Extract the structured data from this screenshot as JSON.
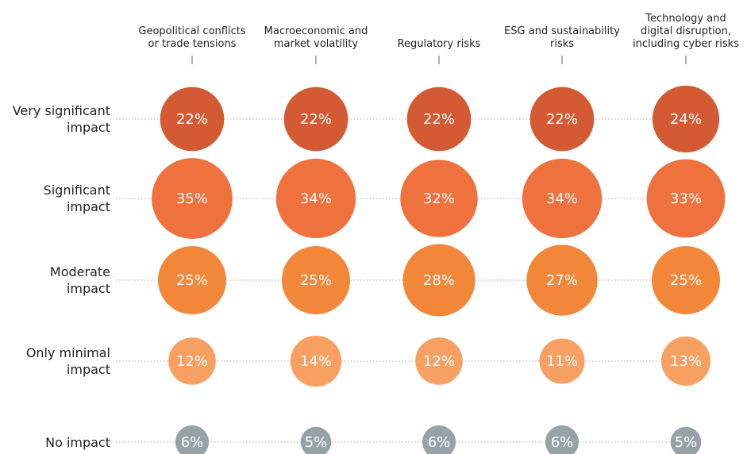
{
  "chart_data": {
    "type": "bubble",
    "categories": [
      "Geopolitical conflicts or trade tensions",
      "Macroeconomic and market volatility",
      "Regulatory risks",
      "ESG and sustainability risks",
      "Technology and digital disruption, including cyber risks"
    ],
    "series": [
      {
        "name": "Very significant impact",
        "color": "#d35a32",
        "values": [
          22,
          22,
          22,
          22,
          24
        ],
        "value_labels": [
          "22%",
          "22%",
          "22%",
          "22%",
          "24%"
        ]
      },
      {
        "name": "Significant impact",
        "color": "#ee713e",
        "values": [
          35,
          34,
          32,
          34,
          33
        ],
        "value_labels": [
          "35%",
          "34%",
          "32%",
          "34%",
          "33%"
        ]
      },
      {
        "name": "Moderate impact",
        "color": "#f2873a",
        "values": [
          25,
          25,
          28,
          27,
          25
        ],
        "value_labels": [
          "25%",
          "25%",
          "28%",
          "27%",
          "25%"
        ]
      },
      {
        "name": "Only minimal impact",
        "color": "#f7a062",
        "values": [
          12,
          14,
          12,
          11,
          13
        ],
        "value_labels": [
          "12%",
          "14%",
          "12%",
          "11%",
          "13%"
        ]
      },
      {
        "name": "No impact",
        "color": "#95a3a8",
        "values": [
          6,
          5,
          6,
          6,
          5
        ],
        "value_labels": [
          "6%",
          "5%",
          "6%",
          "6%",
          "5%"
        ]
      }
    ]
  }
}
